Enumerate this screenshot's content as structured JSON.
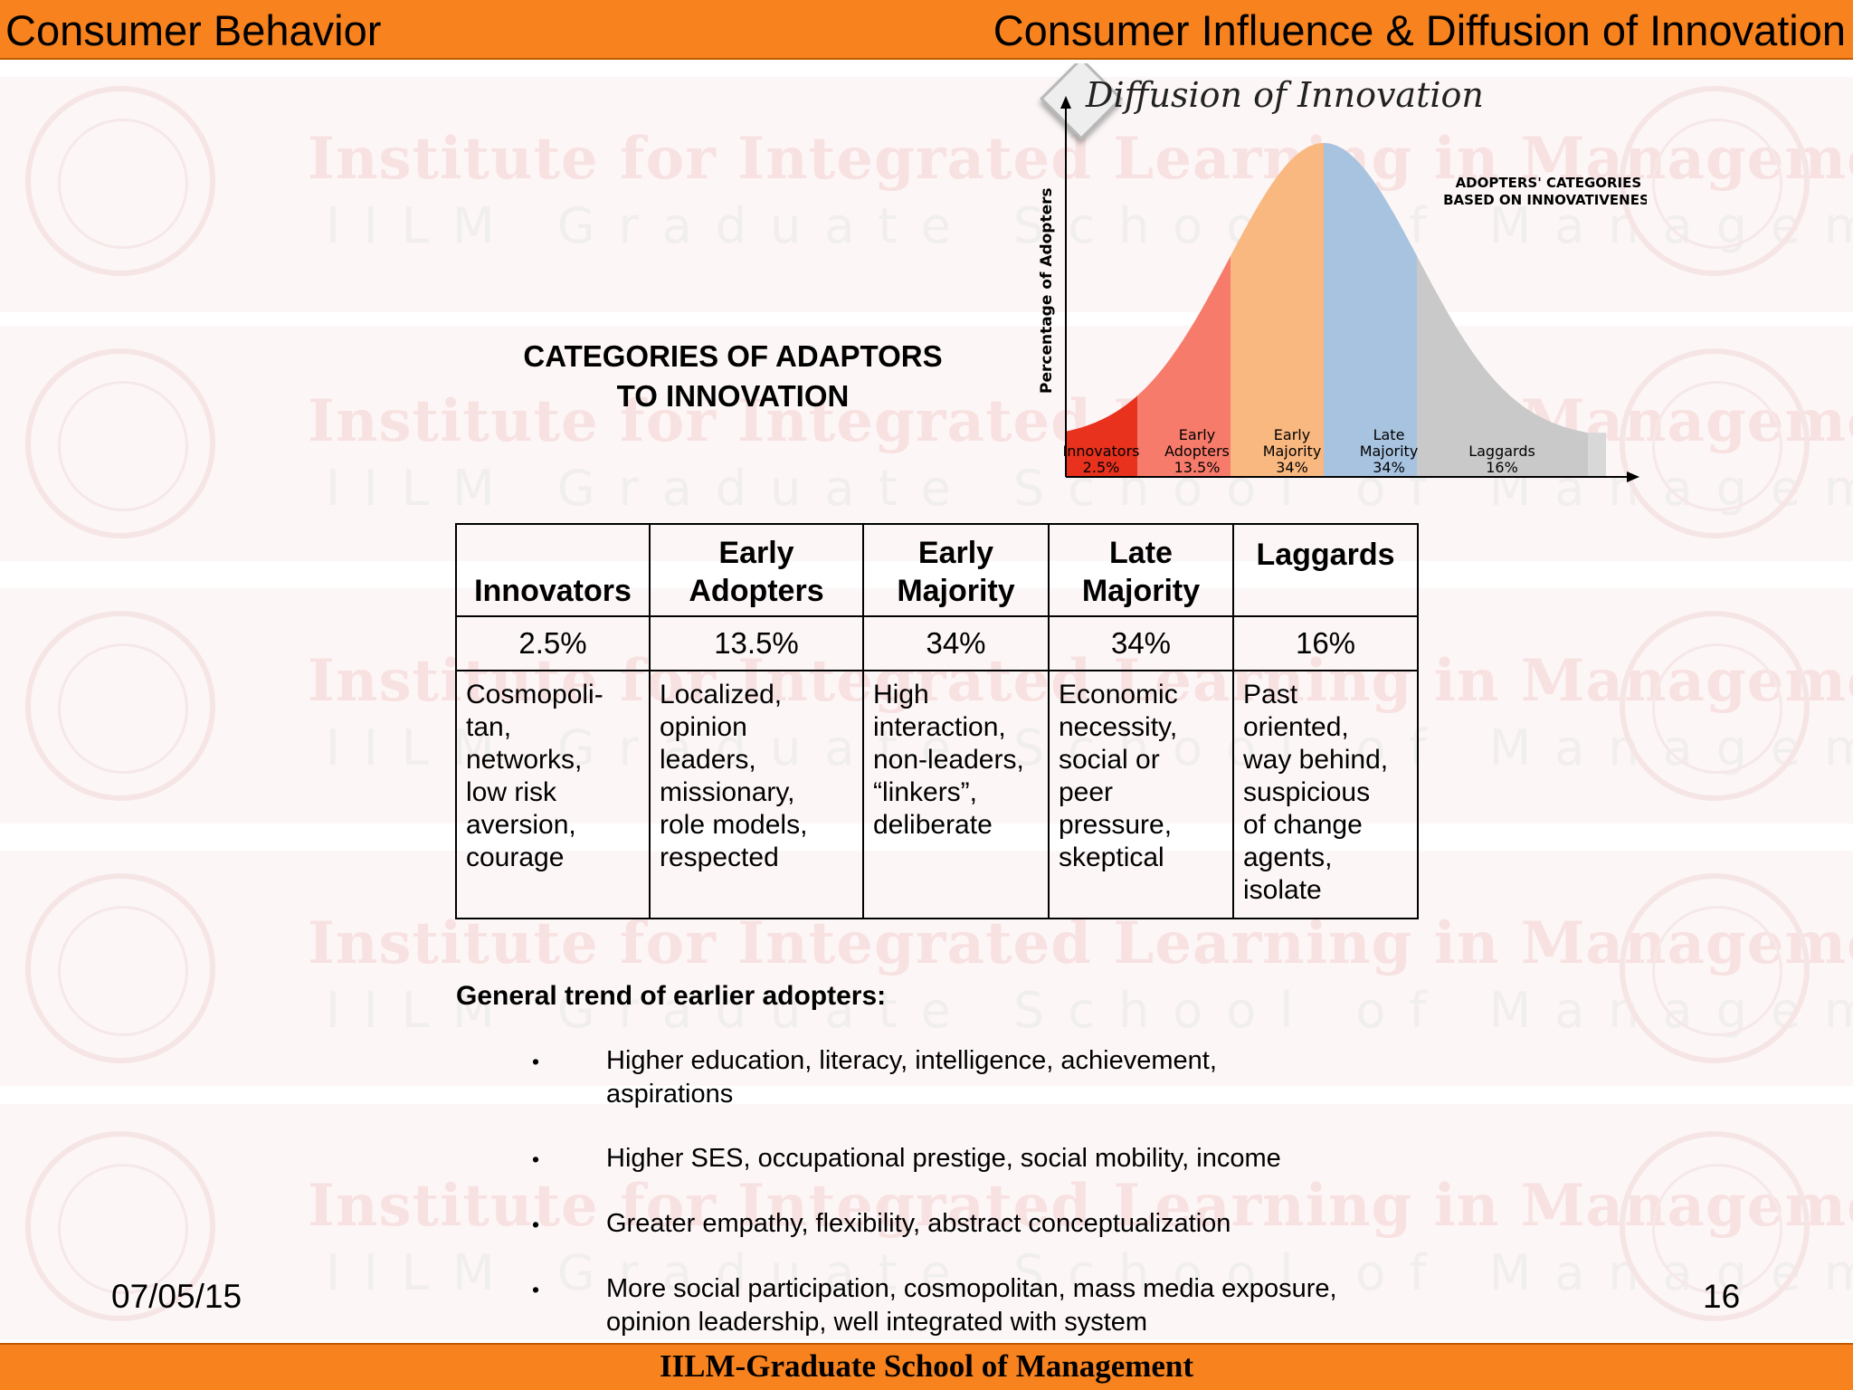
{
  "header": {
    "left": "Consumer Behavior",
    "right": "Consumer Influence & Diffusion of Innovation"
  },
  "watermark": {
    "line1": "Institute for Integrated Learning in Management",
    "line2": "IILM Graduate School of Management",
    "seal_label": "IILM"
  },
  "title_lines": [
    "CATEGORIES OF ADAPTORS",
    "TO INNOVATION"
  ],
  "chart_data": {
    "type": "area",
    "title": "Diffusion of Innovation",
    "ylabel": "Percentage of Adopters",
    "annotation_lines": [
      "ADOPTERS' CATEGORIES",
      "BASED ON INNOVATIVENESS"
    ],
    "categories": [
      {
        "name_lines": [
          "Innovators"
        ],
        "share": "2.5%",
        "value": 2.5,
        "color": "#e8321e"
      },
      {
        "name_lines": [
          "Early",
          "Adopters"
        ],
        "share": "13.5%",
        "value": 13.5,
        "color": "#f77b6b"
      },
      {
        "name_lines": [
          "Early",
          "Majority"
        ],
        "share": "34%",
        "value": 34,
        "color": "#f9b880"
      },
      {
        "name_lines": [
          "Late",
          "Majority"
        ],
        "share": "34%",
        "value": 34,
        "color": "#a7c3df"
      },
      {
        "name_lines": [
          "Laggards"
        ],
        "share": "16%",
        "value": 16,
        "color": "#c9c9c9"
      }
    ],
    "colors": {
      "shade_right": "#d8d8d8"
    }
  },
  "table": {
    "headers": [
      [
        "Innovators"
      ],
      [
        "Early",
        "Adopters"
      ],
      [
        "Early",
        "Majority"
      ],
      [
        "Late",
        "Majority"
      ],
      [
        "Laggards"
      ]
    ],
    "percentages": [
      "2.5%",
      "13.5%",
      "34%",
      "34%",
      "16%"
    ],
    "descriptions": [
      [
        "Cosmopoli-",
        "tan,",
        "networks,",
        "low risk",
        "aversion,",
        "courage"
      ],
      [
        "Localized,",
        "opinion",
        "leaders,",
        "missionary,",
        "role models,",
        "respected"
      ],
      [
        "High",
        "interaction,",
        "non-leaders,",
        "“linkers”,",
        "deliberate"
      ],
      [
        "Economic",
        "necessity,",
        "social or",
        "peer",
        "pressure,",
        "skeptical"
      ],
      [
        "Past",
        "oriented,",
        "way behind,",
        "suspicious",
        "of change",
        "agents,",
        "isolate"
      ]
    ]
  },
  "trend": {
    "title": "General trend of earlier adopters:",
    "bullet_symbol": "•",
    "items": [
      [
        "Higher education, literacy, intelligence, achievement,",
        "aspirations"
      ],
      [
        "Higher SES, occupational prestige, social mobility, income"
      ],
      [
        "Greater empathy, flexibility, abstract conceptualization"
      ],
      [
        "More social participation, cosmopolitan, mass media exposure,",
        "opinion leadership, well integrated with system"
      ]
    ]
  },
  "footer": {
    "date": "07/05/15",
    "page": "16",
    "institution": "IILM-Graduate School of Management"
  }
}
